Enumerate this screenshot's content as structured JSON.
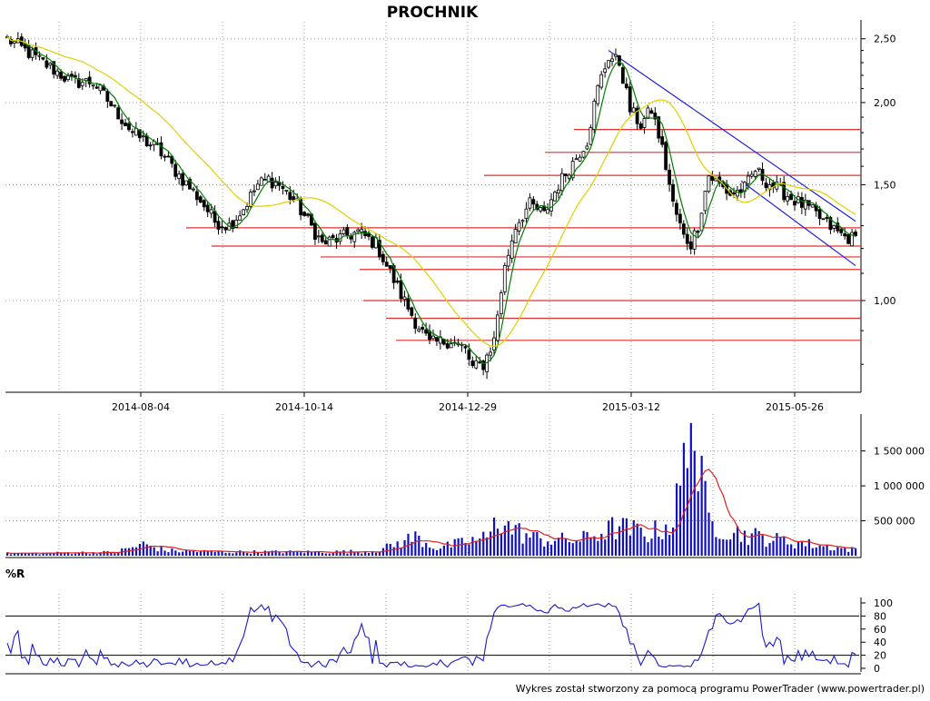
{
  "title": "PROCHNIK",
  "footer": "Wykres został stworzony za pomocą programu PowerTrader (www.powertrader.pl)",
  "colors": {
    "background": "#ffffff",
    "grid": "#9a9a9a",
    "ma_short": "#008000",
    "ma_long": "#e0d000",
    "support_lines": "#e03030",
    "channel": "#2020e0",
    "volume_bars": "#1010c0",
    "volume_ma": "#e02020",
    "williams": "#1a1acc"
  },
  "chart_data": [
    {
      "type": "candlestick",
      "name": "price",
      "title": "PROCHNIK",
      "y_scale": "log",
      "ylim": [
        0.73,
        2.62
      ],
      "y_ticks": [
        "2,50",
        "2,00",
        "1,50",
        "1,00"
      ],
      "x_tick_labels": [
        "2014-08-04",
        "2014-10-14",
        "2014-12-29",
        "2015-03-12",
        "2015-05-26"
      ],
      "grid": true,
      "close_keypoints": [
        [
          0,
          2.5
        ],
        [
          10,
          2.3
        ],
        [
          18,
          2.15
        ],
        [
          24,
          2.15
        ],
        [
          30,
          1.95
        ],
        [
          35,
          1.8
        ],
        [
          42,
          1.7
        ],
        [
          48,
          1.55
        ],
        [
          54,
          1.42
        ],
        [
          58,
          1.32
        ],
        [
          62,
          1.3
        ],
        [
          66,
          1.38
        ],
        [
          70,
          1.5
        ],
        [
          73,
          1.53
        ],
        [
          76,
          1.5
        ],
        [
          80,
          1.42
        ],
        [
          84,
          1.32
        ],
        [
          88,
          1.22
        ],
        [
          94,
          1.25
        ],
        [
          98,
          1.27
        ],
        [
          103,
          1.22
        ],
        [
          106,
          1.13
        ],
        [
          110,
          1.02
        ],
        [
          114,
          0.93
        ],
        [
          118,
          0.86
        ],
        [
          124,
          0.87
        ],
        [
          128,
          0.84
        ],
        [
          130,
          0.79
        ],
        [
          133,
          0.8
        ],
        [
          136,
          0.87
        ],
        [
          139,
          1.12
        ],
        [
          142,
          1.3
        ],
        [
          146,
          1.4
        ],
        [
          150,
          1.35
        ],
        [
          154,
          1.5
        ],
        [
          158,
          1.62
        ],
        [
          162,
          1.75
        ],
        [
          165,
          2.1
        ],
        [
          168,
          2.35
        ],
        [
          171,
          2.3
        ],
        [
          174,
          1.95
        ],
        [
          177,
          1.85
        ],
        [
          180,
          1.95
        ],
        [
          183,
          1.7
        ],
        [
          186,
          1.4
        ],
        [
          189,
          1.25
        ],
        [
          191,
          1.22
        ],
        [
          193,
          1.3
        ],
        [
          196,
          1.55
        ],
        [
          199,
          1.5
        ],
        [
          202,
          1.45
        ],
        [
          206,
          1.48
        ],
        [
          209,
          1.58
        ],
        [
          212,
          1.52
        ],
        [
          216,
          1.47
        ],
        [
          220,
          1.42
        ],
        [
          224,
          1.38
        ],
        [
          228,
          1.32
        ],
        [
          232,
          1.27
        ],
        [
          234,
          1.25
        ],
        [
          237,
          1.24
        ]
      ],
      "moving_averages": [
        {
          "kind": "short",
          "color": "#008000"
        },
        {
          "kind": "long",
          "color": "#e0d000"
        }
      ],
      "support_levels": [
        1.29,
        1.21,
        1.165,
        1.115,
        1.0,
        0.94,
        0.87,
        1.68,
        1.82,
        1.55
      ],
      "channel": {
        "upper": [
          [
            168,
            2.4
          ],
          [
            237,
            1.32
          ]
        ],
        "lower": [
          [
            205,
            1.52
          ],
          [
            237,
            1.13
          ]
        ]
      }
    },
    {
      "type": "bar",
      "name": "volume",
      "y_ticks": [
        "1 500 000",
        "1 000 000",
        "500 000"
      ],
      "ylim": [
        0,
        1950000
      ],
      "volume_keypoints": [
        [
          0,
          35000
        ],
        [
          30,
          55000
        ],
        [
          38,
          180000
        ],
        [
          45,
          80000
        ],
        [
          60,
          60000
        ],
        [
          90,
          60000
        ],
        [
          100,
          70000
        ],
        [
          104,
          90000
        ],
        [
          114,
          300000
        ],
        [
          120,
          120000
        ],
        [
          135,
          300000
        ],
        [
          136,
          700000
        ],
        [
          140,
          450000
        ],
        [
          146,
          300000
        ],
        [
          150,
          250000
        ],
        [
          160,
          250000
        ],
        [
          170,
          450000
        ],
        [
          180,
          350000
        ],
        [
          186,
          550000
        ],
        [
          191,
          1900000
        ],
        [
          196,
          550000
        ],
        [
          205,
          350000
        ],
        [
          215,
          250000
        ],
        [
          237,
          90000
        ]
      ],
      "ma_color": "#e02020"
    },
    {
      "type": "line",
      "name": "williams-%R",
      "title": "%R",
      "y_ticks": [
        "100",
        "80",
        "60",
        "40",
        "20",
        "0"
      ],
      "ylim": [
        0,
        100
      ],
      "reference_levels": [
        20,
        80
      ]
    }
  ]
}
